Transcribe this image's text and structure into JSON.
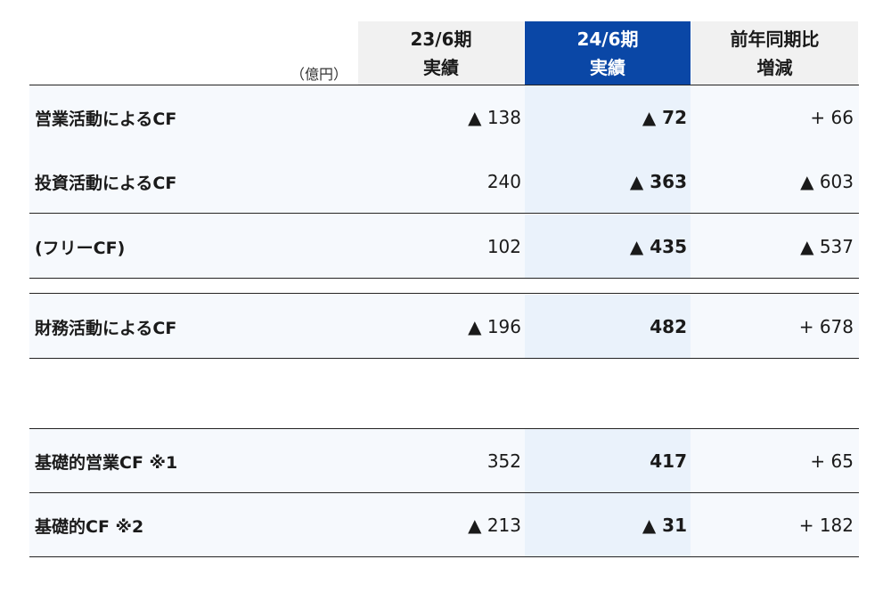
{
  "header": {
    "unit": "（億円）",
    "col1": {
      "line1": "23/6期",
      "line2": "実績"
    },
    "col2": {
      "line1": "24/6期",
      "line2": "実績"
    },
    "col3": {
      "line1": "前年同期比",
      "line2": "増減"
    }
  },
  "rows": [
    {
      "label": "営業活動によるCF",
      "prev": "▲ 138",
      "curr": "▲ 72",
      "diff": "+ 66"
    },
    {
      "label": "投資活動によるCF",
      "prev": "240",
      "curr": "▲ 363",
      "diff": "▲ 603"
    },
    {
      "label": "(フリーCF)",
      "prev": "102",
      "curr": "▲ 435",
      "diff": "▲ 537"
    },
    {
      "label": "財務活動によるCF",
      "prev": "▲ 196",
      "curr": "482",
      "diff": "+ 678"
    },
    {
      "label": "基礎的営業CF ※1",
      "prev": "352",
      "curr": "417",
      "diff": "+ 65"
    },
    {
      "label": "基礎的CF ※2",
      "prev": "▲ 213",
      "curr": "▲ 31",
      "diff": "+ 182"
    }
  ],
  "colors": {
    "highlight_header": "#0a47a6",
    "header_bg": "#f1f1f1",
    "row_bg": "#f6f9fd",
    "highlight_col": "#eaf2fb"
  }
}
